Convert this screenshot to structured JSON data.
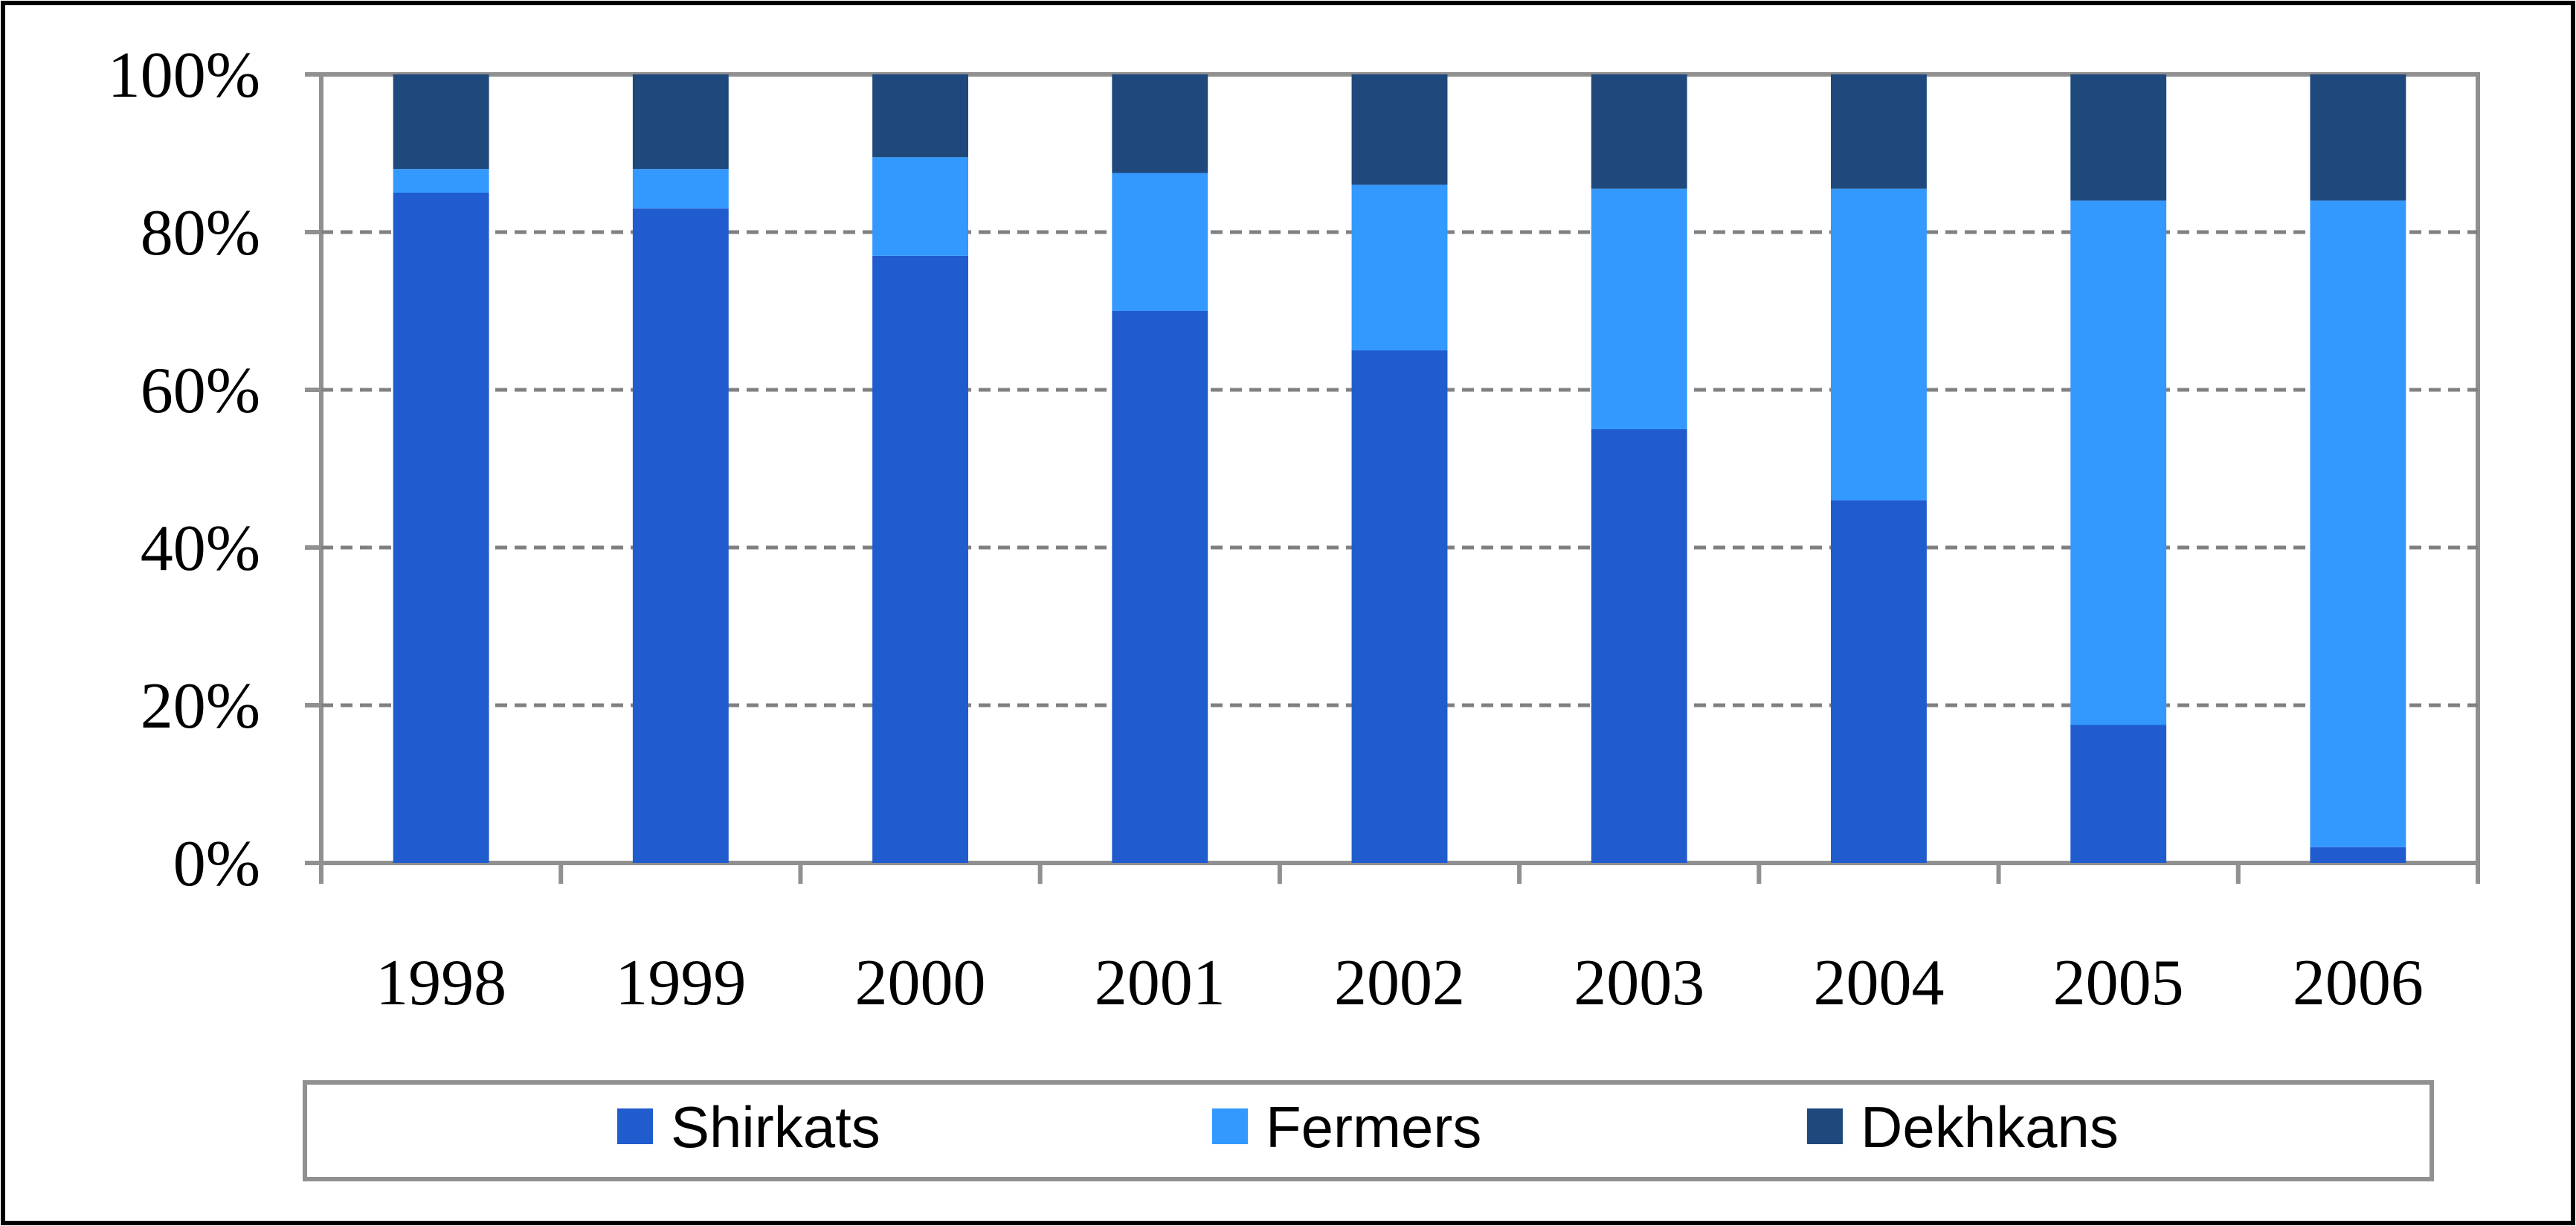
{
  "chart_data": {
    "type": "bar",
    "stacked": true,
    "percent": true,
    "title": "",
    "xlabel": "",
    "ylabel": "",
    "ylim": [
      0,
      100
    ],
    "y_ticks": [
      "0%",
      "20%",
      "40%",
      "60%",
      "80%",
      "100%"
    ],
    "y_tick_values": [
      0,
      20,
      40,
      60,
      80,
      100
    ],
    "categories": [
      "1998",
      "1999",
      "2000",
      "2001",
      "2002",
      "2003",
      "2004",
      "2005",
      "2006"
    ],
    "series": [
      {
        "name": "Shirkats",
        "color": "#215CCE",
        "values": [
          85,
          83,
          77,
          70,
          65,
          55,
          46,
          17.5,
          2
        ]
      },
      {
        "name": "Fermers",
        "color": "#3399FF",
        "values": [
          3,
          5,
          12.5,
          17.5,
          21,
          30.5,
          39.5,
          66.5,
          82
        ]
      },
      {
        "name": "Dekhkans",
        "color": "#1F497D",
        "values": [
          12,
          12,
          10.5,
          12.5,
          14,
          14.5,
          14.5,
          16,
          16
        ]
      }
    ],
    "grid": true,
    "legend_position": "bottom"
  }
}
